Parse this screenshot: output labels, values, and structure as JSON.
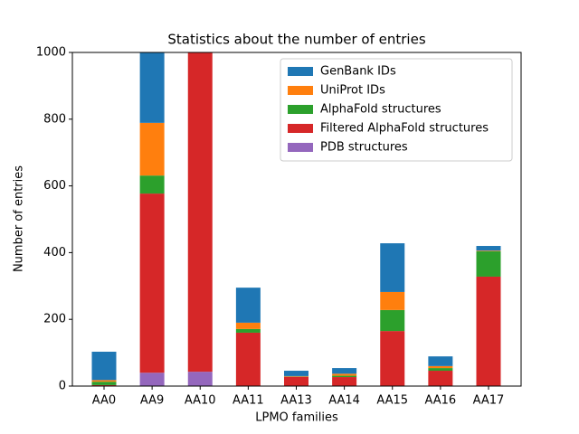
{
  "chart_data": {
    "type": "stacked_bar",
    "title": "Statistics about the number of entries",
    "x_label": "LPMO families",
    "y_label": "Number of entries",
    "categories": [
      "AA0",
      "AA9",
      "AA10",
      "AA11",
      "AA13",
      "AA14",
      "AA15",
      "AA16",
      "AA17"
    ],
    "series": [
      {
        "name": "PDB structures",
        "color": "#9467bd",
        "values": [
          0,
          40,
          43,
          0,
          0,
          0,
          0,
          0,
          0
        ]
      },
      {
        "name": "Filtered AlphaFold structures",
        "color": "#d62728",
        "values": [
          3,
          537,
          957,
          160,
          28,
          27,
          165,
          46,
          328
        ]
      },
      {
        "name": "AlphaFold structures",
        "color": "#2ca02c",
        "values": [
          10,
          54,
          0,
          11,
          1,
          4,
          63,
          8,
          76
        ]
      },
      {
        "name": "UniProt IDs",
        "color": "#ff7f0e",
        "values": [
          5,
          158,
          0,
          19,
          1,
          6,
          54,
          6,
          2
        ]
      },
      {
        "name": "GenBank IDs",
        "color": "#1f77b4",
        "values": [
          85,
          211,
          0,
          105,
          16,
          17,
          146,
          29,
          14
        ]
      }
    ],
    "legend_order": [
      4,
      3,
      2,
      1,
      0
    ],
    "legend": "upper right",
    "ylim": [
      0,
      1000
    ],
    "yticks": [
      0,
      200,
      400,
      600,
      800,
      1000
    ]
  }
}
